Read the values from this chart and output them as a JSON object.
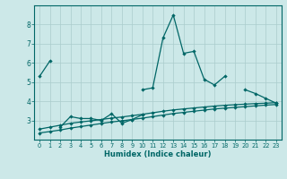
{
  "xlabel": "Humidex (Indice chaleur)",
  "x": [
    0,
    1,
    2,
    3,
    4,
    5,
    6,
    7,
    8,
    9,
    10,
    11,
    12,
    13,
    14,
    15,
    16,
    17,
    18,
    19,
    20,
    21,
    22,
    23
  ],
  "line1_y": [
    5.3,
    6.1,
    null,
    null,
    null,
    null,
    null,
    null,
    null,
    null,
    4.6,
    4.7,
    7.3,
    8.5,
    6.5,
    6.6,
    5.15,
    4.85,
    5.3,
    null,
    4.6,
    4.4,
    4.15,
    3.9
  ],
  "line2_y": [
    null,
    null,
    2.65,
    3.2,
    3.1,
    3.1,
    3.0,
    3.35,
    2.85,
    3.05,
    3.3,
    null,
    null,
    null,
    null,
    null,
    null,
    null,
    null,
    null,
    null,
    null,
    null,
    null
  ],
  "line3_y": [
    2.55,
    2.65,
    2.75,
    2.85,
    2.92,
    2.98,
    3.05,
    3.12,
    3.18,
    3.25,
    3.32,
    3.4,
    3.48,
    3.55,
    3.6,
    3.65,
    3.7,
    3.75,
    3.79,
    3.82,
    3.85,
    3.88,
    3.9,
    3.93
  ],
  "line4_y": [
    2.35,
    2.42,
    2.5,
    2.6,
    2.68,
    2.76,
    2.84,
    2.92,
    2.98,
    3.05,
    3.12,
    3.2,
    3.28,
    3.36,
    3.42,
    3.48,
    3.54,
    3.6,
    3.64,
    3.68,
    3.72,
    3.76,
    3.8,
    3.83
  ],
  "ylim": [
    2.0,
    9.0
  ],
  "yticks": [
    3,
    4,
    5,
    6,
    7,
    8
  ],
  "xlim": [
    -0.5,
    23.5
  ],
  "bg_color": "#cce8e8",
  "grid_color": "#aacccc",
  "line_color": "#006666",
  "marker": "D",
  "markersize": 2.2,
  "linewidth": 0.9
}
